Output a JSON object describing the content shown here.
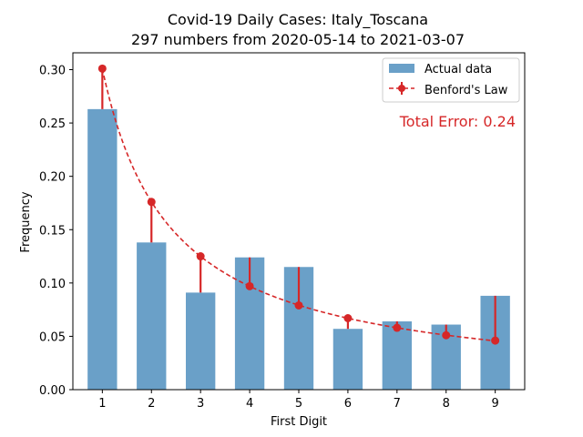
{
  "chart_data": {
    "type": "bar",
    "title": "Covid-19 Daily Cases: Italy_Toscana",
    "subtitle": "297 numbers from 2020-05-14 to 2021-03-07",
    "xlabel": "First Digit",
    "ylabel": "Frequency",
    "categories": [
      "1",
      "2",
      "3",
      "4",
      "5",
      "6",
      "7",
      "8",
      "9"
    ],
    "ylim": [
      0,
      0.32
    ],
    "yticks": [
      "0.00",
      "0.05",
      "0.10",
      "0.15",
      "0.20",
      "0.25",
      "0.30"
    ],
    "series": [
      {
        "name": "Actual data",
        "kind": "bar",
        "color": "#6aa0c8",
        "values": [
          0.263,
          0.138,
          0.091,
          0.124,
          0.115,
          0.057,
          0.064,
          0.061,
          0.088
        ]
      },
      {
        "name": "Benford's Law",
        "kind": "line",
        "color": "#d62728",
        "style": "dashed",
        "marker": "circle",
        "values": [
          0.301,
          0.176,
          0.125,
          0.097,
          0.079,
          0.067,
          0.058,
          0.051,
          0.046
        ]
      }
    ],
    "legend": {
      "placement": "top-right",
      "items": [
        "Actual data",
        "Benford's Law"
      ]
    },
    "annotation": {
      "text": "Total Error: 0.24",
      "color": "#d62728"
    },
    "grid": false
  }
}
